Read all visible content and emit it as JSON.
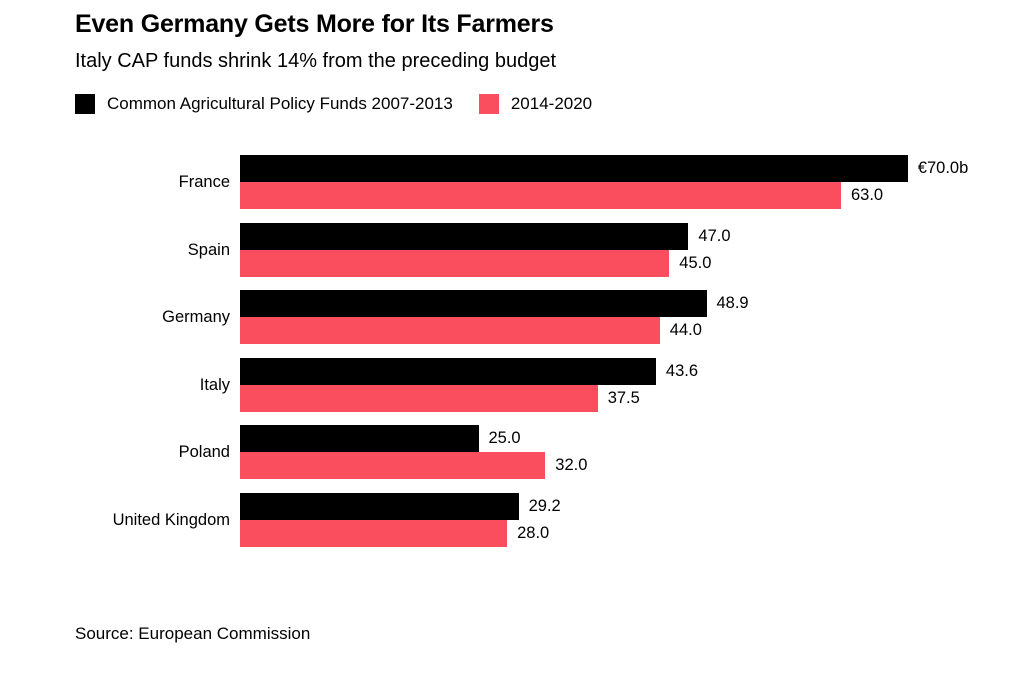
{
  "header": {
    "title": "Even Germany Gets More for Its Farmers",
    "subtitle": "Italy CAP funds shrink 14% from the preceding budget"
  },
  "legend": [
    {
      "label": "Common Agricultural Policy Funds 2007-2013",
      "color": "#000000"
    },
    {
      "label": "2014-2020",
      "color": "#FA4D5E"
    }
  ],
  "chart_data": {
    "type": "bar",
    "orientation": "horizontal",
    "title": "Even Germany Gets More for Its Farmers",
    "subtitle": "Italy CAP funds shrink 14% from the preceding budget",
    "unit": "billions of euros",
    "categories": [
      "France",
      "Spain",
      "Germany",
      "Italy",
      "Poland",
      "United Kingdom"
    ],
    "series": [
      {
        "name": "Common Agricultural Policy Funds 2007-2013",
        "color": "#000000",
        "values": [
          70.0,
          47.0,
          48.9,
          43.6,
          25.0,
          29.2
        ],
        "labels": [
          "€70.0b",
          "47.0",
          "48.9",
          "43.6",
          "25.0",
          "29.2"
        ]
      },
      {
        "name": "2014-2020",
        "color": "#FA4D5E",
        "values": [
          63.0,
          45.0,
          44.0,
          37.5,
          32.0,
          28.0
        ],
        "labels": [
          "63.0",
          "45.0",
          "44.0",
          "37.5",
          "32.0",
          "28.0"
        ]
      }
    ],
    "xlim": [
      0,
      70
    ],
    "grid": false,
    "legend_position": "top",
    "value_labels": "outside-end"
  },
  "source": "Source: European Commission"
}
